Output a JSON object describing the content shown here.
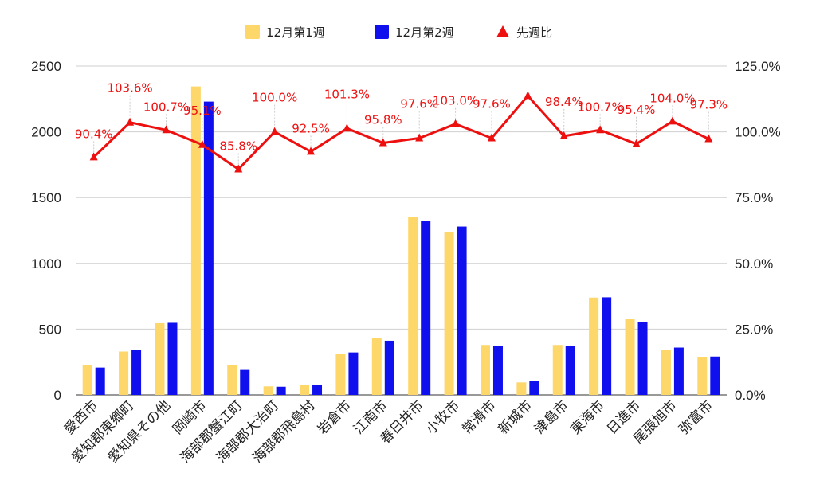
{
  "colors": {
    "week1": "#fdd76a",
    "week2": "#1010ee",
    "ratio": "#ee0f0f",
    "grid": "#cfcfcf"
  },
  "legend": [
    {
      "key": "week1",
      "label": "12月第1週",
      "marker": "square"
    },
    {
      "key": "week2",
      "label": "12月第2週",
      "marker": "square"
    },
    {
      "key": "ratio",
      "label": "先週比",
      "marker": "triangle"
    }
  ],
  "chart_data": {
    "type": "bar",
    "categories": [
      "愛西市",
      "愛知郡東郷町",
      "愛知県その他",
      "岡崎市",
      "海部郡蟹江町",
      "海部郡大治町",
      "海部郡飛島村",
      "岩倉市",
      "江南市",
      "春日井市",
      "小牧市",
      "常滑市",
      "新城市",
      "津島市",
      "東海市",
      "日進市",
      "尾張旭市",
      "弥富市"
    ],
    "series": [
      {
        "name": "12月第1週",
        "axis": "left",
        "values": [
          230,
          330,
          545,
          2345,
          225,
          65,
          75,
          310,
          430,
          1350,
          1240,
          380,
          95,
          380,
          740,
          575,
          340,
          290
        ]
      },
      {
        "name": "12月第2週",
        "axis": "left",
        "values": [
          208,
          342,
          548,
          2230,
          190,
          62,
          78,
          323,
          412,
          1322,
          1280,
          372,
          108,
          373,
          742,
          556,
          360,
          292
        ]
      },
      {
        "name": "先週比",
        "type": "line",
        "axis": "right",
        "values": [
          90.4,
          103.6,
          100.7,
          95.1,
          85.8,
          100.0,
          92.5,
          101.3,
          95.8,
          97.6,
          103.0,
          97.6,
          113.7,
          98.4,
          100.7,
          95.4,
          104.0,
          97.3
        ]
      }
    ],
    "data_labels": [
      "90.4%",
      "103.6%",
      "100.7%",
      "95.1%",
      "85.8%",
      "100.0%",
      "92.5%",
      "101.3%",
      "95.8%",
      "97.6%",
      "103.0%",
      "97.6%",
      "",
      "98.4%",
      "100.7%",
      "95.4%",
      "104.0%",
      "97.3%"
    ],
    "left_axis": {
      "min": 0,
      "max": 2500,
      "ticks": [
        "0",
        "500",
        "1000",
        "1500",
        "2000",
        "2500"
      ]
    },
    "right_axis": {
      "min": 0,
      "max": 125,
      "ticks": [
        "0.0%",
        "25.0%",
        "50.0%",
        "75.0%",
        "100.0%",
        "125.0%"
      ]
    },
    "legend_position": "top",
    "grid": true
  }
}
